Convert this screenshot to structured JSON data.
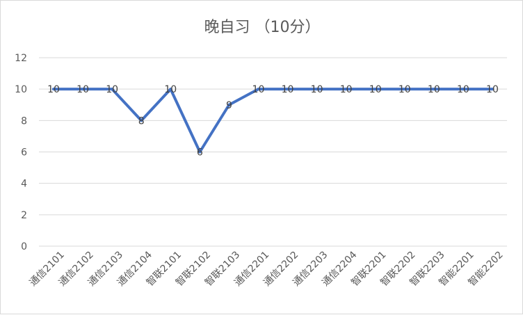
{
  "chart_data": {
    "type": "line",
    "title": "晚自习 （10分）",
    "categories": [
      "通信2101",
      "通信2102",
      "通信2103",
      "通信2104",
      "智联2101",
      "智联2102",
      "智联2103",
      "通信2201",
      "通信2202",
      "通信2203",
      "通信2204",
      "智联2201",
      "智联2202",
      "智联2203",
      "智能2201",
      "智能2202"
    ],
    "series": [
      {
        "values": [
          10,
          10,
          10,
          8,
          10,
          6,
          9,
          10,
          10,
          10,
          10,
          10,
          10,
          10,
          10,
          10
        ]
      }
    ],
    "ylim": [
      0,
      12
    ],
    "yticks": [
      0,
      2,
      4,
      6,
      8,
      10,
      12
    ],
    "grid": true,
    "data_labels": true,
    "legend": "none",
    "line_color": "#4472C4",
    "xlabel": "",
    "ylabel": ""
  }
}
